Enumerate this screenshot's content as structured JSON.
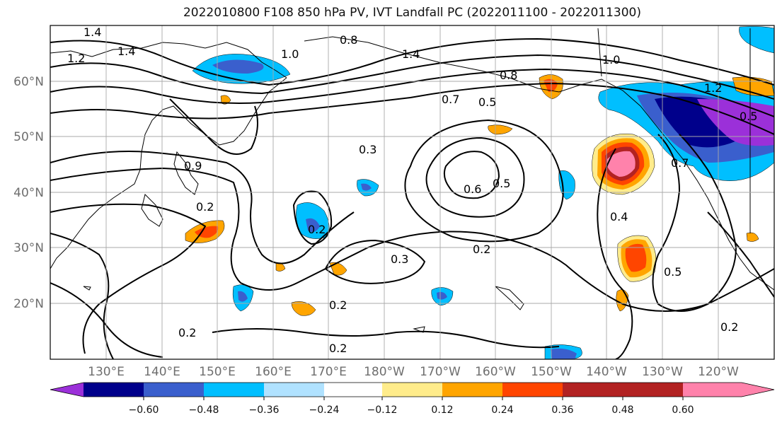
{
  "title": "2022010800 F108 850 hPa PV, IVT Landfall PC (2022011100 - 2022011300)",
  "latitude_labels": [
    "60°N",
    "50°N",
    "40°N",
    "30°N",
    "20°N"
  ],
  "longitude_labels": [
    "130°E",
    "140°E",
    "150°E",
    "160°E",
    "170°E",
    "180°W",
    "170°W",
    "160°W",
    "150°W",
    "140°W",
    "130°W",
    "120°W"
  ],
  "colorbar": {
    "tick_labels": [
      "−0.60",
      "−0.48",
      "−0.36",
      "−0.24",
      "−0.12",
      "0.12",
      "0.24",
      "0.36",
      "0.48",
      "0.60"
    ],
    "colors": [
      "#9b30d9",
      "#00008b",
      "#3a5fcd",
      "#00bfff",
      "#b0e2ff",
      "#ffffff",
      "#ffec8b",
      "#ffa500",
      "#ff4500",
      "#b22222",
      "#ff82ab"
    ]
  },
  "contour_labels": [
    "1.4",
    "1.2",
    "1.4",
    "0.8",
    "1.0",
    "1.4",
    "1.0",
    "0.8",
    "0.7",
    "0.5",
    "0.3",
    "0.6",
    "0.5",
    "0.2",
    "0.2",
    "0.3",
    "0.2",
    "0.4",
    "0.5",
    "0.2",
    "0.2",
    "0.2",
    "0.2",
    "1.2",
    "0.7",
    "0.9",
    "0.5"
  ]
}
